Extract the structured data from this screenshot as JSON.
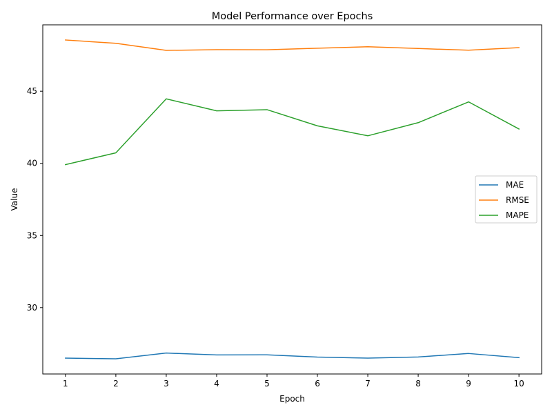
{
  "chart_data": {
    "type": "line",
    "title": "Model Performance over Epochs",
    "xlabel": "Epoch",
    "ylabel": "Value",
    "x": [
      1,
      2,
      3,
      4,
      5,
      6,
      7,
      8,
      9,
      10
    ],
    "xticks": [
      "1",
      "2",
      "3",
      "4",
      "5",
      "6",
      "7",
      "8",
      "9",
      "10"
    ],
    "yticks": [
      "30",
      "35",
      "40",
      "45"
    ],
    "yticks_values": [
      30,
      35,
      40,
      45
    ],
    "xlim": [
      0.55,
      10.45
    ],
    "ylim": [
      25.4,
      49.6
    ],
    "grid": false,
    "legend_position": "center right",
    "series": [
      {
        "name": "MAE",
        "color": "#1f77b4",
        "values": [
          26.5,
          26.45,
          26.85,
          26.72,
          26.73,
          26.57,
          26.5,
          26.58,
          26.82,
          26.53
        ]
      },
      {
        "name": "RMSE",
        "color": "#ff7f0e",
        "values": [
          48.55,
          48.32,
          47.83,
          47.88,
          47.87,
          47.98,
          48.08,
          47.96,
          47.84,
          48.02
        ]
      },
      {
        "name": "MAPE",
        "color": "#2ca02c",
        "values": [
          39.91,
          40.73,
          44.47,
          43.64,
          43.72,
          42.6,
          41.91,
          42.82,
          44.26,
          42.38
        ]
      }
    ]
  }
}
